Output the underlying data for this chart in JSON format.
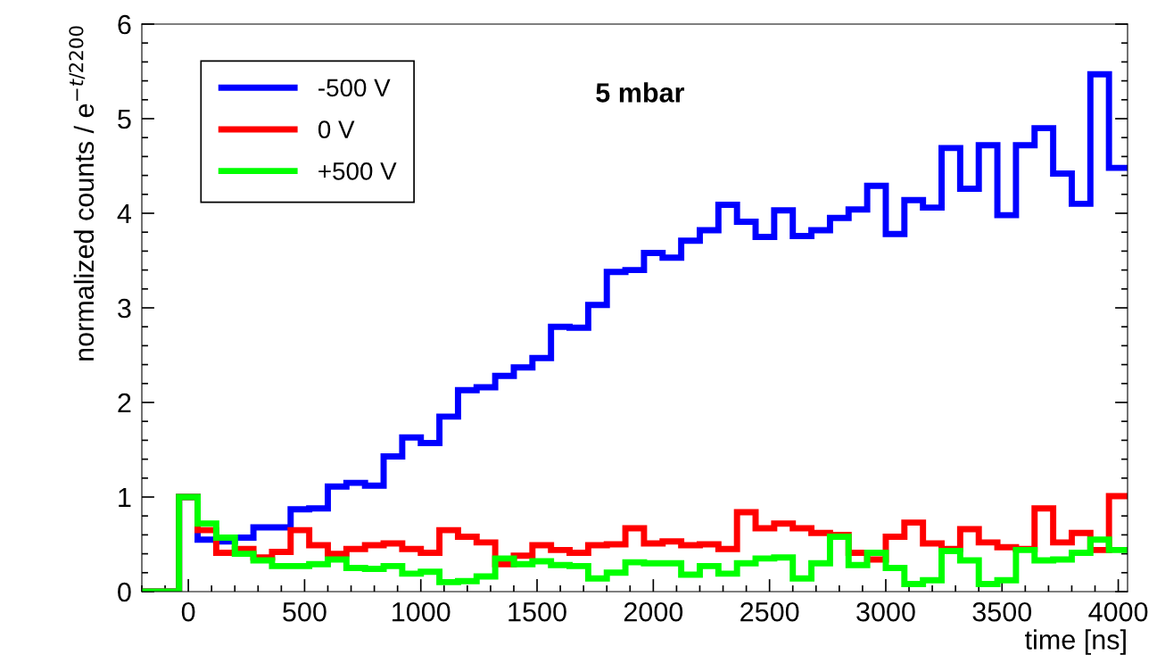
{
  "chart_data": {
    "type": "histogram",
    "xlabel": "time [ns]",
    "ylabel": "normalized counts / e$^{−t/2200}$",
    "annotations": [
      "5 mbar"
    ],
    "bins": [
      -200,
      -120,
      -40,
      40,
      120,
      200,
      280,
      360,
      440,
      520,
      600,
      680,
      760,
      840,
      920,
      1000,
      1080,
      1160,
      1240,
      1320,
      1400,
      1480,
      1560,
      1640,
      1720,
      1800,
      1880,
      1960,
      2040,
      2120,
      2200,
      2280,
      2360,
      2440,
      2520,
      2600,
      2680,
      2760,
      2840,
      2920,
      3000,
      3080,
      3160,
      3240,
      3320,
      3400,
      3480,
      3560,
      3640,
      3720,
      3800,
      3880,
      3960,
      4040
    ],
    "series": [
      {
        "name": "-500 V",
        "color": "#0000ff",
        "values": [
          0,
          0,
          1.0,
          0.55,
          0.53,
          0.57,
          0.68,
          0.68,
          0.87,
          0.88,
          1.11,
          1.15,
          1.12,
          1.43,
          1.63,
          1.57,
          1.85,
          2.13,
          2.16,
          2.28,
          2.37,
          2.47,
          2.8,
          2.79,
          3.03,
          3.38,
          3.4,
          3.58,
          3.53,
          3.71,
          3.82,
          4.09,
          3.91,
          3.75,
          4.03,
          3.76,
          3.82,
          3.95,
          4.04,
          4.29,
          3.78,
          4.14,
          4.06,
          4.69,
          4.26,
          4.72,
          3.98,
          4.72,
          4.9,
          4.42,
          4.1,
          5.47,
          4.48
        ]
      },
      {
        "name": "0 V",
        "color": "#ff0000",
        "values": [
          0,
          0,
          1.0,
          0.65,
          0.41,
          0.45,
          0.36,
          0.42,
          0.65,
          0.49,
          0.4,
          0.45,
          0.49,
          0.51,
          0.45,
          0.41,
          0.65,
          0.58,
          0.52,
          0.29,
          0.38,
          0.49,
          0.44,
          0.41,
          0.49,
          0.5,
          0.67,
          0.51,
          0.53,
          0.49,
          0.5,
          0.45,
          0.84,
          0.67,
          0.72,
          0.67,
          0.62,
          0.6,
          0.41,
          0.34,
          0.58,
          0.73,
          0.51,
          0.45,
          0.66,
          0.52,
          0.47,
          0.45,
          0.88,
          0.52,
          0.62,
          0.44,
          1.01
        ]
      },
      {
        "name": "+500 V",
        "color": "#00ff00",
        "values": [
          0,
          0,
          1.0,
          0.72,
          0.57,
          0.4,
          0.33,
          0.27,
          0.27,
          0.29,
          0.34,
          0.25,
          0.24,
          0.27,
          0.19,
          0.21,
          0.1,
          0.11,
          0.16,
          0.35,
          0.29,
          0.32,
          0.28,
          0.27,
          0.14,
          0.2,
          0.31,
          0.3,
          0.3,
          0.18,
          0.27,
          0.19,
          0.3,
          0.35,
          0.36,
          0.14,
          0.3,
          0.58,
          0.28,
          0.41,
          0.25,
          0.08,
          0.12,
          0.43,
          0.33,
          0.08,
          0.12,
          0.44,
          0.33,
          0.34,
          0.41,
          0.55,
          0.44
        ]
      }
    ],
    "xlim": [
      -200,
      4040
    ],
    "ylim": [
      0,
      6
    ],
    "xticks": [
      0,
      500,
      1000,
      1500,
      2000,
      2500,
      3000,
      3500,
      4000
    ],
    "yticks": [
      0,
      1,
      2,
      3,
      4,
      5,
      6
    ],
    "legend": "top left",
    "grid": false
  }
}
